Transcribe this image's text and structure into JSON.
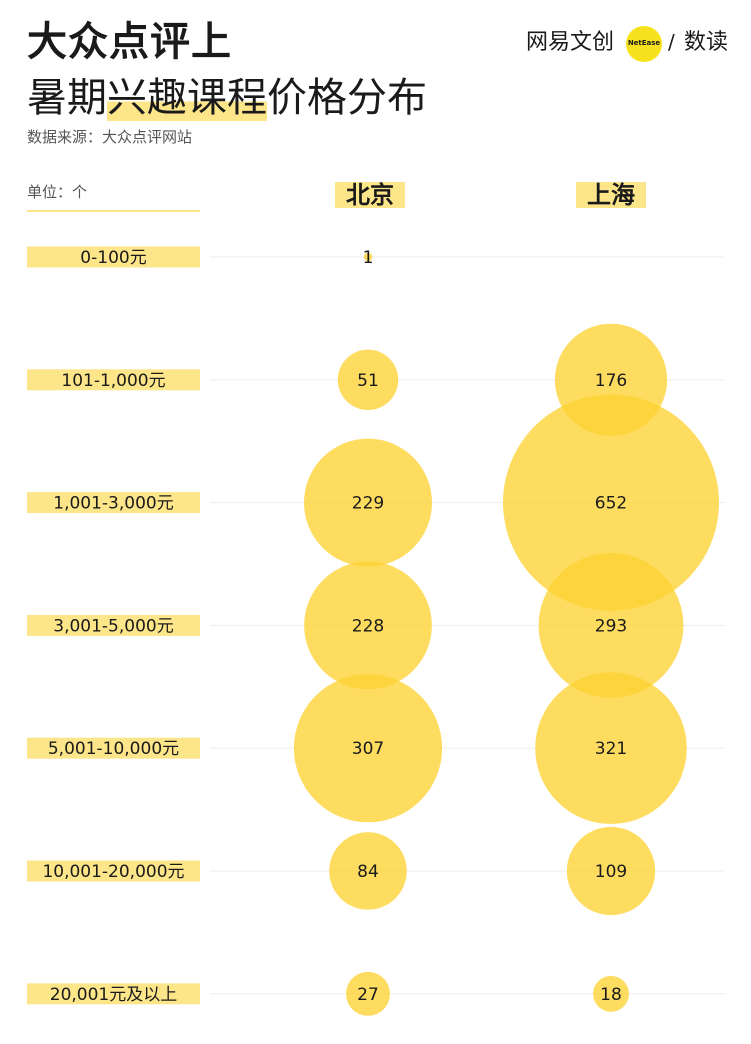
{
  "header": {
    "title_line1": "大众点评上",
    "title_line2_pre": "暑期",
    "title_line2_highlight": "兴趣课程",
    "title_line2_post": "价格分布",
    "source": "数据来源：大众点评网站"
  },
  "logo": {
    "brand": "网易文创",
    "badge": "NetEase",
    "slash": "/",
    "sub": "数读"
  },
  "unit_label": "单位：个",
  "colors": {
    "bubble": "#fcd232",
    "label_bg": "#fde58a",
    "gridline": "#eeeeee"
  },
  "chart_data": {
    "type": "bubble",
    "categories": [
      "0-100元",
      "101-1,000元",
      "1,001-3,000元",
      "3,001-5,000元",
      "5,001-10,000元",
      "10,001-20,000元",
      "20,001元及以上"
    ],
    "series": [
      {
        "name": "北京",
        "values": [
          1,
          51,
          229,
          228,
          307,
          84,
          27
        ]
      },
      {
        "name": "上海",
        "values": [
          null,
          176,
          652,
          293,
          321,
          109,
          18
        ]
      }
    ]
  }
}
